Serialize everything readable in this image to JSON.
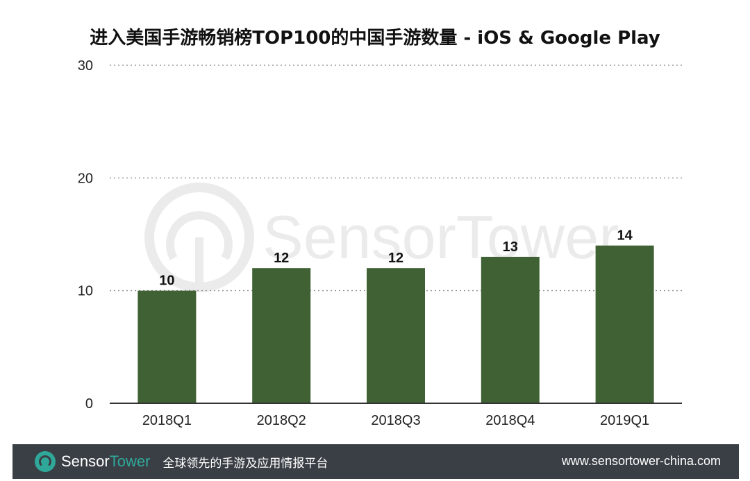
{
  "chart_data": {
    "type": "bar",
    "title": "进入美国手游畅销榜TOP100的中国手游数量 - iOS & Google Play",
    "categories": [
      "2018Q1",
      "2018Q2",
      "2018Q3",
      "2018Q4",
      "2019Q1"
    ],
    "values": [
      10,
      12,
      12,
      13,
      14
    ],
    "data_labels": [
      "10",
      "12",
      "12",
      "13",
      "14"
    ],
    "ylim": [
      0,
      30
    ],
    "yticks": [
      0,
      10,
      20,
      30
    ],
    "ytick_labels": [
      "0",
      "10",
      "20",
      "30"
    ],
    "xlabel": "",
    "ylabel": "",
    "grid": "dotted horizontal",
    "bar_color": "#3f6134",
    "watermark": "SensorTower"
  },
  "footer": {
    "brand_part1": "Sensor",
    "brand_part2": "Tower",
    "tagline": "全球领先的手游及应用情报平台",
    "url": "www.sensortower-china.com",
    "accent_color": "#2fa89a",
    "background_color": "#3a3f45"
  }
}
